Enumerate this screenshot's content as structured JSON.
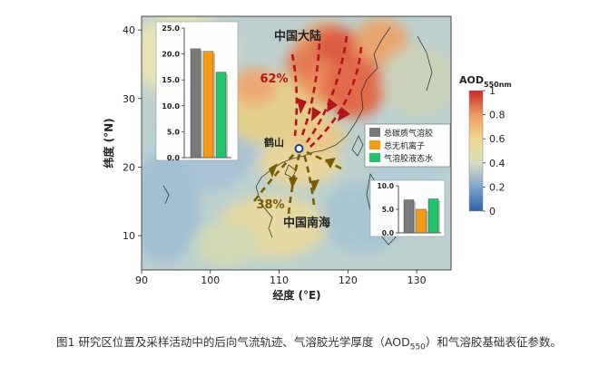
{
  "map": {
    "x_axis_label": "经度 (°E)",
    "y_axis_label": "纬度 (°N)",
    "x_ticks": [
      90,
      100,
      110,
      120,
      130
    ],
    "y_ticks": [
      10,
      20,
      30,
      40
    ],
    "xlim": [
      90,
      135
    ],
    "ylim": [
      5,
      42
    ],
    "regions": {
      "mainland": "中国大陆",
      "sea": "中国南海"
    },
    "site": {
      "name": "鹤山",
      "lon": 112.9,
      "lat": 22.7
    },
    "north_share": "62%",
    "south_share": "38%",
    "colors": {
      "north_arrow": "#b5121b",
      "south_arrow": "#7a5c00",
      "site_marker": "#1a3f9e"
    }
  },
  "colorbar": {
    "title": "AOD",
    "title_sub": "550nm",
    "ticks": [
      "1",
      "0.8",
      "0.6",
      "0.4",
      "0.2",
      "0"
    ],
    "range": [
      0,
      1
    ],
    "colors": [
      "#3060a8",
      "#7ea4cc",
      "#d8dec0",
      "#f1d890",
      "#ee9a60",
      "#c92828"
    ]
  },
  "legend": {
    "items": [
      {
        "label": "总碳质气溶胶",
        "color": "#7a7a7a"
      },
      {
        "label": "总无机离子",
        "color": "#f59a12"
      },
      {
        "label": "气溶胶液态水",
        "color": "#22c46b"
      }
    ]
  },
  "chart_data": [
    {
      "type": "bar",
      "categories": [
        "总碳质气溶胶",
        "总无机离子",
        "气溶胶液态水"
      ],
      "values": [
        21.0,
        20.5,
        16.5
      ],
      "ylim": [
        0,
        25
      ],
      "ticks": [
        "25.0",
        "20.0",
        "15.0",
        "10.0",
        "5.0",
        "0.0"
      ]
    },
    {
      "type": "bar",
      "categories": [
        "总碳质气溶胶",
        "总无机离子",
        "气溶胶液态水"
      ],
      "values": [
        7.0,
        5.0,
        7.2
      ],
      "ylim": [
        0,
        10
      ],
      "ticks": [
        "10.0",
        "5.0",
        "0.0"
      ]
    }
  ],
  "caption": {
    "prefix": "图1 研究区位置及采样活动中的后向气流轨迹、气溶胶光学厚度（AOD",
    "sub": "550",
    "suffix": "）和气溶胶基础表征参数。"
  }
}
